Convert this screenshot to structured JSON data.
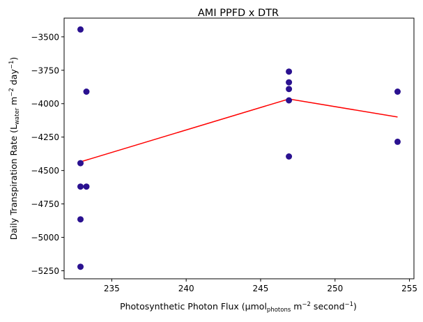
{
  "chart_data": {
    "type": "scatter",
    "title": "AMI PPFD x DTR",
    "xlabel": {
      "prefix": "Photosynthetic Photon Flux (µmol",
      "sub": "photons",
      "mid": " m",
      "sup1": "−2",
      "mid2": " second",
      "sup2": "−1",
      "suffix": ")"
    },
    "ylabel": {
      "prefix": "Daily Transpiration Rate (L",
      "sub": "water",
      "mid": " m",
      "sup1": "−2",
      "mid2": " day",
      "sup2": "−1",
      "suffix": ")"
    },
    "xlim": [
      231.8,
      255.3
    ],
    "ylim": [
      -5310,
      -3360
    ],
    "xticks": [
      235,
      240,
      245,
      250,
      255
    ],
    "yticks": [
      -3500,
      -3750,
      -4000,
      -4250,
      -4500,
      -4750,
      -5000,
      -5250
    ],
    "tick_label_text": {
      "x": [
        "235",
        "240",
        "245",
        "250",
        "255"
      ],
      "y": [
        "−3500",
        "−3750",
        "−4000",
        "−4250",
        "−4500",
        "−4750",
        "−5000",
        "−5250"
      ]
    },
    "grid": false,
    "scatter_color": "#2a1190",
    "line_color": "#ff0000",
    "series": [
      {
        "kind": "points",
        "x": [
          232.9,
          232.9,
          232.9,
          232.9,
          232.9,
          233.3,
          233.3,
          246.9,
          246.9,
          246.9,
          246.9,
          246.9,
          254.2,
          254.2
        ],
        "y": [
          -3445,
          -4445,
          -4620,
          -4865,
          -5220,
          -3910,
          -4620,
          -3760,
          -3840,
          -3890,
          -3975,
          -4395,
          -3910,
          -4285
        ]
      },
      {
        "kind": "line",
        "x": [
          232.9,
          246.9,
          254.2
        ],
        "y": [
          -4435,
          -3965,
          -4100
        ]
      }
    ]
  }
}
